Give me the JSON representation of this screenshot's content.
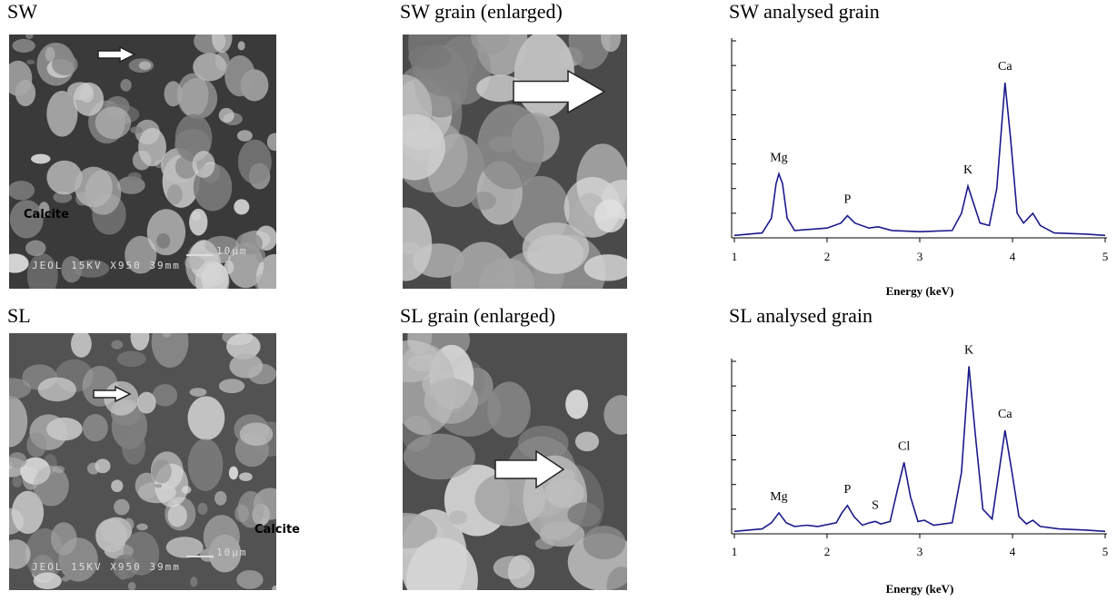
{
  "images": [
    {
      "title": "SW",
      "annotation": "Calcite",
      "scale_bar": "10μm",
      "footer": "JEOL   15KV   X950   39mm"
    },
    {
      "title": "SW grain (enlarged)"
    },
    {
      "title": "SL",
      "annotation": "Calcite",
      "scale_bar": "10μm",
      "footer": "JEOL   15KV   X950   39mm"
    },
    {
      "title": "SL grain (enlarged)"
    }
  ],
  "chart_data": [
    {
      "type": "line",
      "title": "SW analysed grain",
      "x_label": "Energy (keV)",
      "color": "#1a1a8c",
      "xlim": [
        1,
        5
      ],
      "xticks": [
        1,
        2,
        3,
        4,
        5
      ],
      "ylim": [
        0,
        8
      ],
      "yticks": [
        0,
        1,
        2,
        3,
        4,
        5,
        6,
        7,
        8
      ],
      "x": [
        1.0,
        1.3,
        1.4,
        1.45,
        1.48,
        1.52,
        1.57,
        1.65,
        2.0,
        2.15,
        2.22,
        2.3,
        2.45,
        2.55,
        2.7,
        3.0,
        3.35,
        3.45,
        3.52,
        3.58,
        3.65,
        3.75,
        3.83,
        3.92,
        3.98,
        4.05,
        4.12,
        4.22,
        4.3,
        4.45,
        4.8,
        5.0
      ],
      "values": [
        0.1,
        0.2,
        0.8,
        2.2,
        2.6,
        2.2,
        0.8,
        0.3,
        0.4,
        0.6,
        0.9,
        0.6,
        0.4,
        0.45,
        0.3,
        0.25,
        0.3,
        1.0,
        2.1,
        1.4,
        0.6,
        0.5,
        2.0,
        6.3,
        4.0,
        1.0,
        0.6,
        1.0,
        0.5,
        0.2,
        0.15,
        0.1
      ],
      "annotations": [
        {
          "text": "Mg",
          "x": 1.48
        },
        {
          "text": "P",
          "x": 2.22
        },
        {
          "text": "K",
          "x": 3.52
        },
        {
          "text": "Ca",
          "x": 3.92
        }
      ]
    },
    {
      "type": "line",
      "title": "SL analysed grain",
      "x_label": "Energy (keV)",
      "color": "#1a1a8c",
      "xlim": [
        1,
        5
      ],
      "xticks": [
        1,
        2,
        3,
        4,
        5
      ],
      "ylim": [
        0,
        7
      ],
      "yticks": [
        0,
        1,
        2,
        3,
        4,
        5,
        6,
        7
      ],
      "x": [
        1.0,
        1.3,
        1.4,
        1.48,
        1.56,
        1.65,
        1.78,
        1.9,
        2.1,
        2.16,
        2.22,
        2.29,
        2.38,
        2.46,
        2.52,
        2.58,
        2.68,
        2.76,
        2.83,
        2.9,
        2.98,
        3.05,
        3.15,
        3.35,
        3.45,
        3.53,
        3.6,
        3.68,
        3.78,
        3.85,
        3.92,
        3.99,
        4.07,
        4.15,
        4.22,
        4.3,
        4.5,
        4.8,
        5.0
      ],
      "values": [
        0.1,
        0.2,
        0.45,
        0.85,
        0.45,
        0.3,
        0.35,
        0.3,
        0.45,
        0.85,
        1.15,
        0.7,
        0.35,
        0.45,
        0.5,
        0.4,
        0.5,
        1.8,
        2.9,
        1.5,
        0.5,
        0.55,
        0.35,
        0.45,
        2.5,
        6.8,
        4.0,
        1.0,
        0.6,
        2.4,
        4.2,
        2.6,
        0.7,
        0.4,
        0.55,
        0.3,
        0.2,
        0.15,
        0.1
      ],
      "annotations": [
        {
          "text": "Mg",
          "x": 1.48
        },
        {
          "text": "P",
          "x": 2.22
        },
        {
          "text": "S",
          "x": 2.52
        },
        {
          "text": "Cl",
          "x": 2.83
        },
        {
          "text": "K",
          "x": 3.53
        },
        {
          "text": "Ca",
          "x": 3.92
        }
      ]
    }
  ]
}
